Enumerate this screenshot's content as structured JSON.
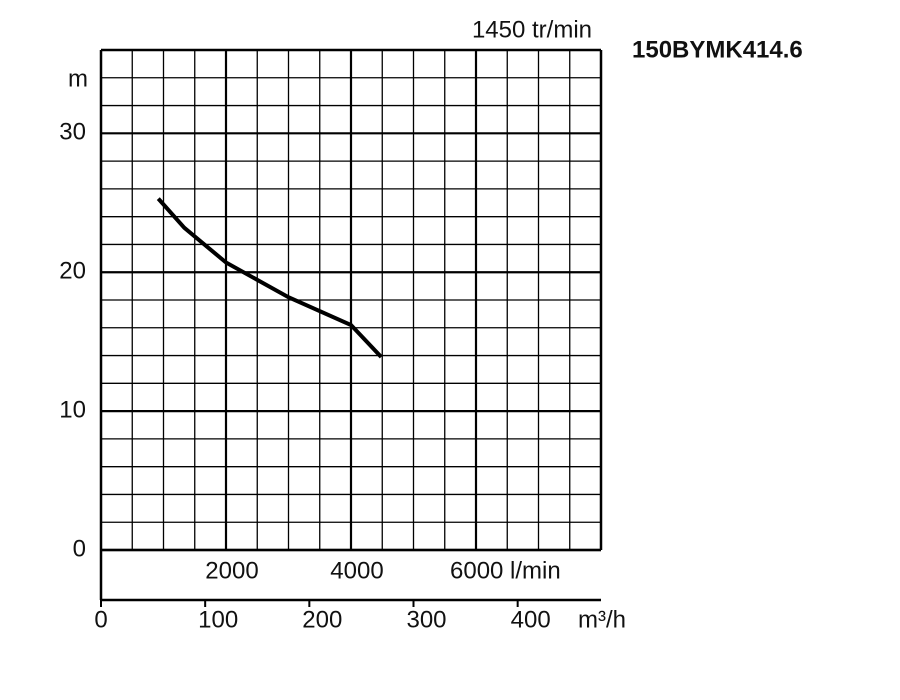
{
  "chart_data": {
    "type": "line",
    "title": "150BYMK414.6",
    "subtitle": "1450 tr/min",
    "y_label": "m",
    "x_label": "m³/h",
    "x": [
      55,
      80,
      120,
      180,
      240,
      269
    ],
    "values": [
      25.3,
      23.2,
      20.7,
      18.2,
      16.2,
      13.9
    ],
    "color": "#000000",
    "xlim": [
      0,
      480
    ],
    "xticks": [
      0,
      100,
      200,
      300,
      400
    ],
    "x2lim": [
      0,
      8000
    ],
    "x2ticks": [
      2000,
      4000,
      {
        "value": 6000,
        "label": "6000 l/min"
      }
    ],
    "ylim": [
      0,
      36
    ],
    "yticks": [
      0,
      10,
      20,
      30
    ],
    "grid": true
  }
}
